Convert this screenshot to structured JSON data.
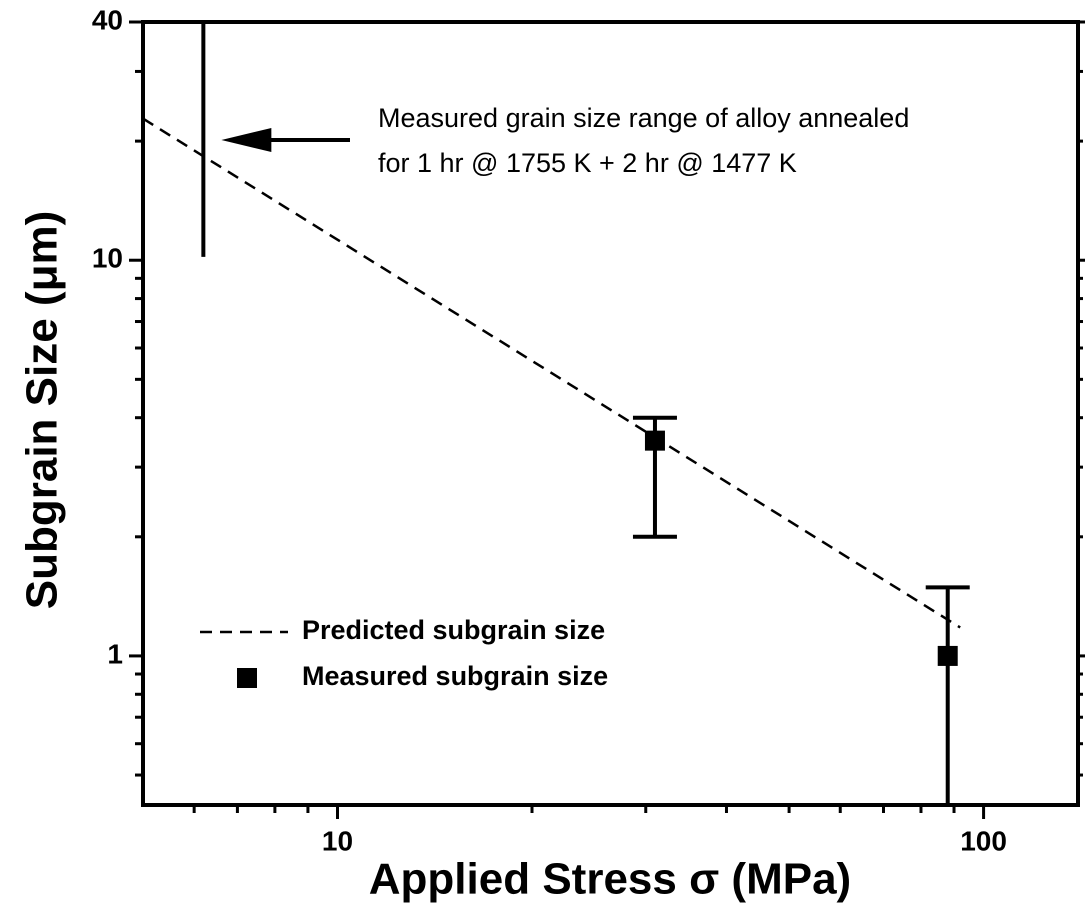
{
  "chart_data": {
    "type": "scatter",
    "xlabel": "Applied Stress σ (MPa)",
    "ylabel": "Subgrain Size  (μm)",
    "log_x": true,
    "log_y": true,
    "xlim": [
      5,
      140
    ],
    "ylim": [
      0.42,
      40
    ],
    "xticks": [
      10,
      100
    ],
    "yticks": [
      1,
      10,
      40
    ],
    "xminorticks": [
      6,
      7,
      8,
      9,
      20,
      30,
      40,
      50,
      60,
      70,
      80,
      90
    ],
    "yminorticks": [
      0.5,
      0.6,
      0.7,
      0.8,
      0.9,
      2,
      3,
      4,
      5,
      6,
      7,
      8,
      9,
      20,
      30
    ],
    "legend": "lower left",
    "series": [
      {
        "name": "Predicted subgrain size",
        "kind": "line",
        "dashed": true,
        "color": "#000000",
        "x": [
          5,
          92
        ],
        "values": [
          22.8,
          1.18
        ]
      },
      {
        "name": "Measured subgrain size",
        "kind": "points",
        "color": "#000000",
        "x": [
          31,
          88
        ],
        "values": [
          3.5,
          1.0
        ],
        "lower": [
          2.0,
          0.42
        ],
        "upper": [
          4.0,
          1.49
        ]
      }
    ],
    "range_bar": {
      "x": 6.2,
      "low": 10.2,
      "high": 40
    },
    "annotation": [
      "Measured grain size range of alloy annealed",
      "for 1 hr @ 1755 K + 2 hr @ 1477 K"
    ]
  }
}
